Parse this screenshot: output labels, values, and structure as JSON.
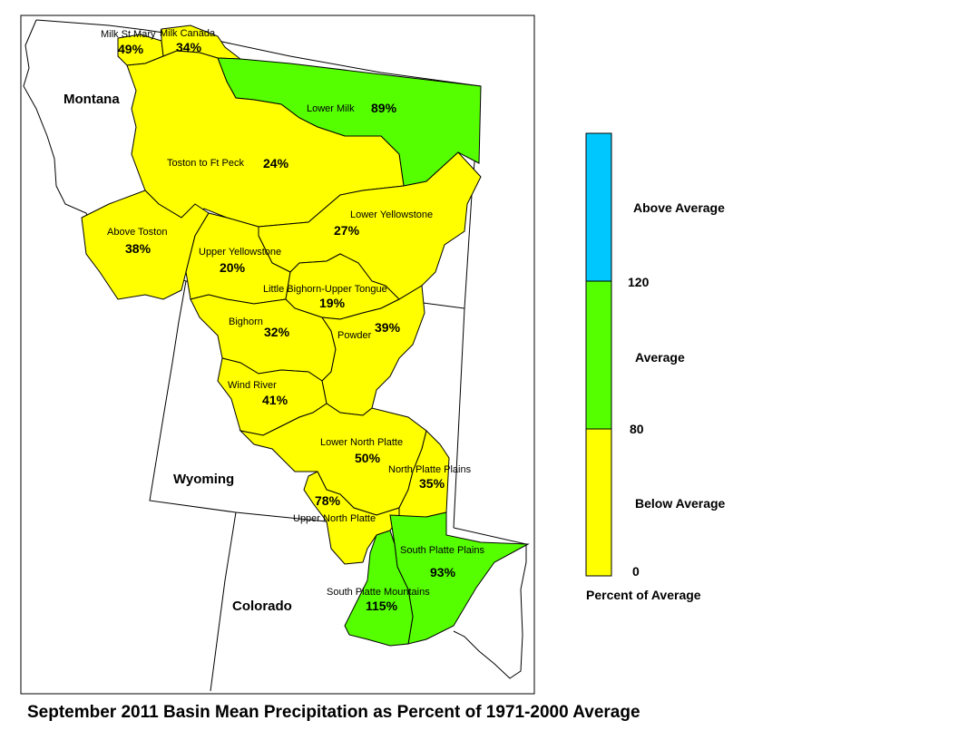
{
  "title": "September 2011 Basin Mean Precipitation as Percent of 1971-2000 Average",
  "colors": {
    "below": "#ffff00",
    "average": "#55ff00",
    "above": "#00c8ff"
  },
  "states": [
    {
      "id": "montana",
      "name": "Montana"
    },
    {
      "id": "wyoming",
      "name": "Wyoming"
    },
    {
      "id": "colorado",
      "name": "Colorado"
    }
  ],
  "basins": [
    {
      "id": "milk-st-mary",
      "name": "Milk St Mary",
      "percent": "49%",
      "category": "below"
    },
    {
      "id": "milk-canada",
      "name": "Milk Canada",
      "percent": "34%",
      "category": "below"
    },
    {
      "id": "lower-milk",
      "name": "Lower Milk",
      "percent": "89%",
      "category": "average"
    },
    {
      "id": "toston-ft-peck",
      "name": "Toston to Ft Peck",
      "percent": "24%",
      "category": "below"
    },
    {
      "id": "above-toston",
      "name": "Above Toston",
      "percent": "38%",
      "category": "below"
    },
    {
      "id": "lower-yellowstone",
      "name": "Lower Yellowstone",
      "percent": "27%",
      "category": "below"
    },
    {
      "id": "upper-yellowstone",
      "name": "Upper Yellowstone",
      "percent": "20%",
      "category": "below"
    },
    {
      "id": "little-bighorn",
      "name": "Little Bighorn-Upper Tongue",
      "percent": "19%",
      "category": "below"
    },
    {
      "id": "bighorn",
      "name": "Bighorn",
      "percent": "32%",
      "category": "below"
    },
    {
      "id": "powder",
      "name": "Powder",
      "percent": "39%",
      "category": "below"
    },
    {
      "id": "wind-river",
      "name": "Wind River",
      "percent": "41%",
      "category": "below"
    },
    {
      "id": "lower-north-platte",
      "name": "Lower North Platte",
      "percent": "50%",
      "category": "below"
    },
    {
      "id": "north-platte-plains",
      "name": "North Platte Plains",
      "percent": "35%",
      "category": "below"
    },
    {
      "id": "upper-north-platte",
      "name": "Upper North Platte",
      "percent": "78%",
      "category": "below"
    },
    {
      "id": "south-platte-plains",
      "name": "South Platte Plains",
      "percent": "93%",
      "category": "average"
    },
    {
      "id": "south-platte-mountains",
      "name": "South Platte Mountains",
      "percent": "115%",
      "category": "average"
    }
  ],
  "legend": {
    "classes": [
      {
        "label": "Above Average",
        "color": "#00c8ff"
      },
      {
        "label": "Average",
        "color": "#55ff00"
      },
      {
        "label": "Below Average",
        "color": "#ffff00"
      }
    ],
    "breaks": [
      "120",
      "80",
      "0"
    ],
    "caption": "Percent of Average"
  }
}
